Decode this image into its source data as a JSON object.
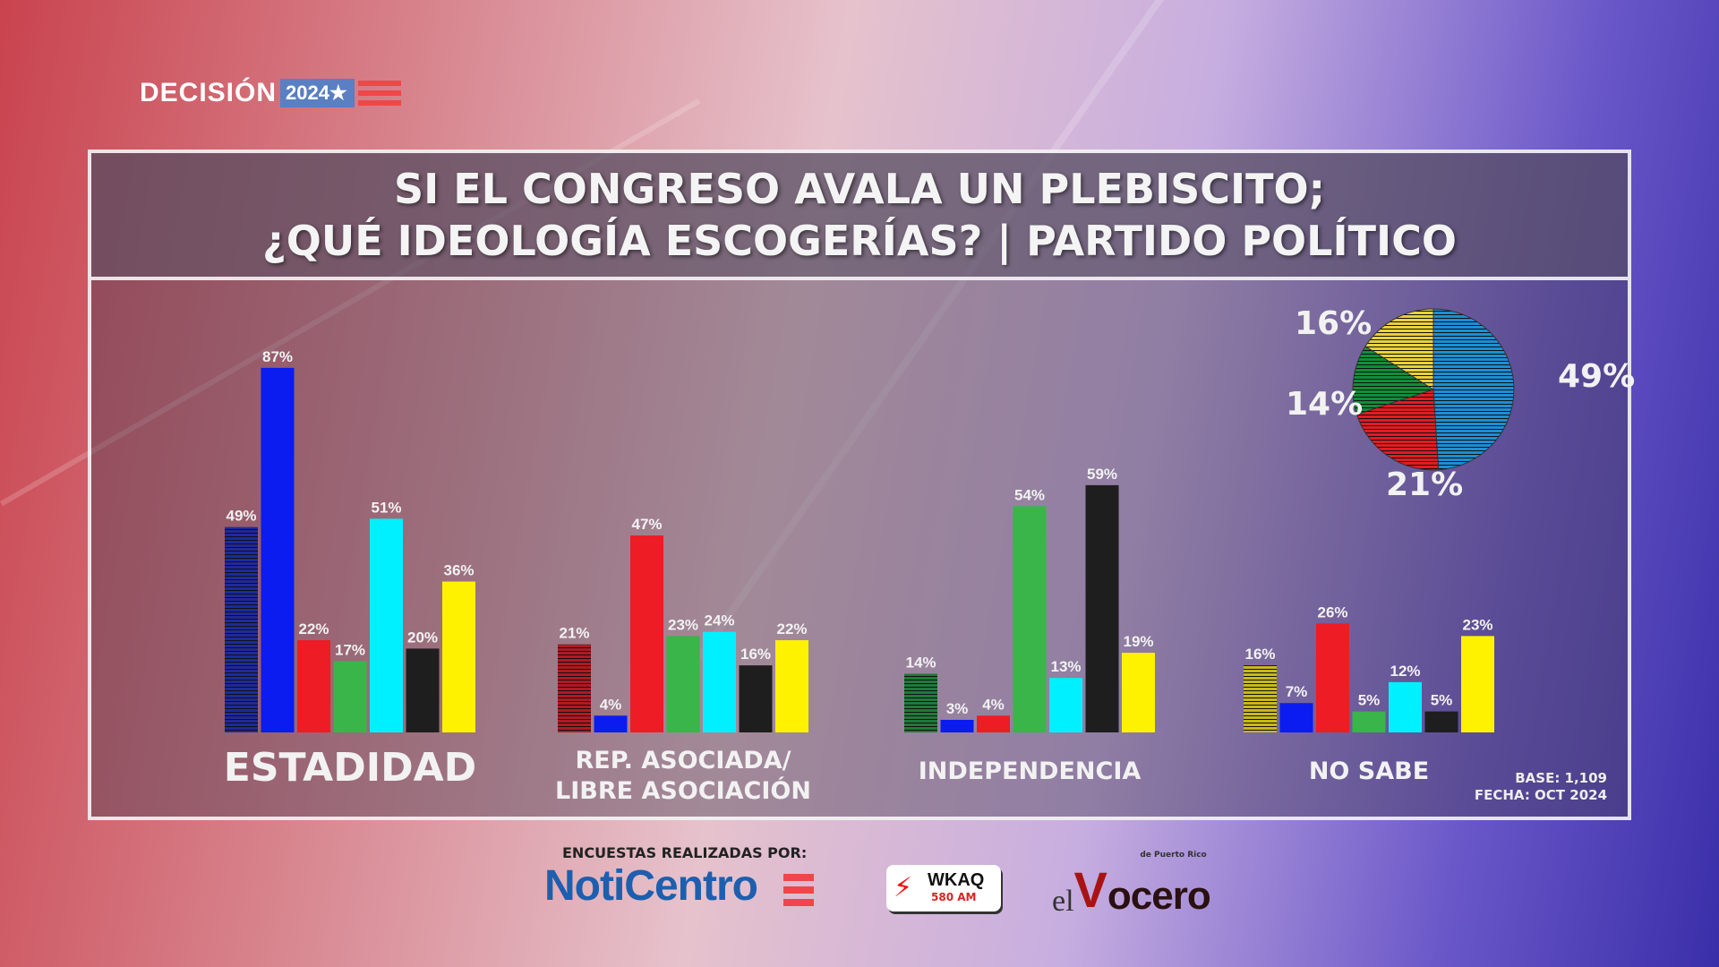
{
  "logo": {
    "text": "DECISIÓN",
    "year": "2024★"
  },
  "title": {
    "line1": "SI EL CONGRESO AVALA UN PLEBISCITO;",
    "line2": "¿QUÉ IDEOLOGÍA ESCOGERÍAS? | PARTIDO POLÍTICO"
  },
  "colors": {
    "striped_blue": "#1e2a9a",
    "blue": "#0a1cf0",
    "red": "#ee1c25",
    "green": "#39b54a",
    "cyan": "#00f0ff",
    "black": "#1e1e1e",
    "yellow": "#fff200",
    "pie_blue": "#1b8fd6",
    "pie_red": "#e31b23",
    "pie_green": "#0f8f3a",
    "pie_yellow": "#e8d23a"
  },
  "chart_data": [
    {
      "type": "bar",
      "categories": [
        "ESTADIDAD",
        "REP. ASOCIADA/\nLIBRE ASOCIACIÓN",
        "INDEPENDENCIA",
        "NO SABE"
      ],
      "category_lines": [
        [
          "ESTADIDAD"
        ],
        [
          "REP. ASOCIADA/",
          "LIBRE ASOCIACIÓN"
        ],
        [
          "INDEPENDENCIA"
        ],
        [
          "NO SABE"
        ]
      ],
      "unit": "%",
      "first_bar_striped_colors": [
        "#1e2a9a",
        "#b01a22",
        "#1f7a3a",
        "#c9b91a"
      ],
      "series_colors": [
        "striped",
        "#0a1cf0",
        "#ee1c25",
        "#39b54a",
        "#00f0ff",
        "#1e1e1e",
        "#fff200"
      ],
      "values": [
        [
          49,
          87,
          22,
          17,
          51,
          20,
          36
        ],
        [
          21,
          4,
          47,
          23,
          24,
          16,
          22
        ],
        [
          14,
          3,
          4,
          54,
          13,
          59,
          19
        ],
        [
          16,
          7,
          26,
          5,
          12,
          5,
          23
        ]
      ],
      "ylim": [
        0,
        100
      ],
      "grid": false
    },
    {
      "type": "pie",
      "slices": [
        {
          "value": 49,
          "label": "49%",
          "color": "#1b8fd6"
        },
        {
          "value": 21,
          "label": "21%",
          "color": "#e31b23"
        },
        {
          "value": 14,
          "label": "14%",
          "color": "#0f8f3a"
        },
        {
          "value": 16,
          "label": "16%",
          "color": "#e8d23a"
        }
      ]
    }
  ],
  "footnote": {
    "base": "BASE: 1,109",
    "date": "FECHA: OCT 2024"
  },
  "sponsors": {
    "label": "ENCUESTAS REALIZADAS POR:",
    "noticentro": "NotiCentro",
    "wkaq": "WKAQ",
    "wkaq_freq": "580 AM",
    "vocero_el": "el",
    "vocero_v": "V",
    "vocero_rest": "ocero",
    "vocero_sub": "de Puerto Rico"
  }
}
